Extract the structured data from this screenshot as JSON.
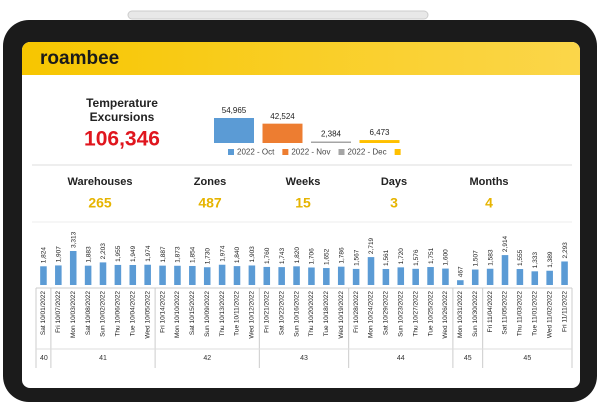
{
  "header": {
    "logo": "roambee"
  },
  "kpi": {
    "title": [
      "Temperature",
      "Excursions"
    ],
    "value": "106,346"
  },
  "stats": [
    {
      "label": "Warehouses",
      "value": "265"
    },
    {
      "label": "Zones",
      "value": "487"
    },
    {
      "label": "Weeks",
      "value": "15"
    },
    {
      "label": "Days",
      "value": "3"
    },
    {
      "label": "Months",
      "value": "4"
    }
  ],
  "chart_data": [
    {
      "type": "bar",
      "categories": [
        "2022 - Oct",
        "2022 - Nov",
        "2022 - Dec",
        null
      ],
      "values": [
        54965,
        42524,
        2384,
        6473
      ],
      "value_labels": [
        "54,965",
        "42,524",
        "2,384",
        "6,473"
      ],
      "colors": [
        "#5b9bd5",
        "#ed7d31",
        "#a5a5a5",
        "#ffc000"
      ],
      "legend": true
    },
    {
      "type": "bar",
      "groups": [
        {
          "label": "40",
          "categories": [
            "Sat 10/01/2022"
          ]
        },
        {
          "label": "41",
          "categories": [
            "Fri 10/07/2022",
            "Mon 10/03/2022",
            "Sat 10/08/2022",
            "Sun 10/02/2022",
            "Thu 10/06/2022",
            "Tue 10/04/2022",
            "Wed 10/05/2022"
          ]
        },
        {
          "label": "42",
          "categories": [
            "Fri 10/14/2022",
            "Mon 10/10/2022",
            "Sat 10/15/2022",
            "Sun 10/09/2022",
            "Thu 10/13/2022",
            "Tue 10/11/2022",
            "Wed 10/12/2022"
          ]
        },
        {
          "label": "43",
          "categories": [
            "Fri 10/21/2022",
            "Sat 10/22/2022",
            "Sun 10/16/2022",
            "Thu 10/20/2022",
            "Tue 10/18/2022",
            "Wed 10/19/2022"
          ]
        },
        {
          "label": "44",
          "categories": [
            "Fri 10/28/2022",
            "Mon 10/24/2022",
            "Sat 10/29/2022",
            "Sun 10/23/2022",
            "Thu 10/27/2022",
            "Tue 10/25/2022",
            "Wed 10/26/2022"
          ]
        },
        {
          "label": "45",
          "categories": [
            "Mon 10/31/2022",
            "Sun 10/30/2022"
          ]
        },
        {
          "label": "45",
          "categories": [
            "Fri 11/04/2022",
            "Sat 11/05/2022",
            "Thu 11/03/2022",
            "Tue 11/01/2022",
            "Wed 11/02/2022",
            "Fri 11/11/2022"
          ]
        }
      ],
      "values": [
        1824,
        1907,
        3313,
        1883,
        2203,
        1955,
        1949,
        1974,
        1887,
        1873,
        1854,
        1730,
        1974,
        1840,
        1903,
        1760,
        1743,
        1820,
        1706,
        1652,
        1786,
        1567,
        2719,
        1561,
        1720,
        1576,
        1751,
        1600,
        467,
        1507,
        1583,
        2914,
        1555,
        1333,
        1389,
        2293
      ],
      "value_labels": [
        "1,824",
        "1,907",
        "3,313",
        "1,883",
        "2,203",
        "1,955",
        "1,949",
        "1,974",
        "1,887",
        "1,873",
        "1,854",
        "1,730",
        "1,974",
        "1,840",
        "1,903",
        "1,760",
        "1,743",
        "1,820",
        "1,706",
        "1,652",
        "1,786",
        "1,567",
        "2,719",
        "1,561",
        "1,720",
        "1,576",
        "1,751",
        "1,600",
        "467",
        "1,507",
        "1,583",
        "2,914",
        "1,555",
        "1,333",
        "1,389",
        "2,293"
      ],
      "color": "#5b9bd5"
    }
  ]
}
